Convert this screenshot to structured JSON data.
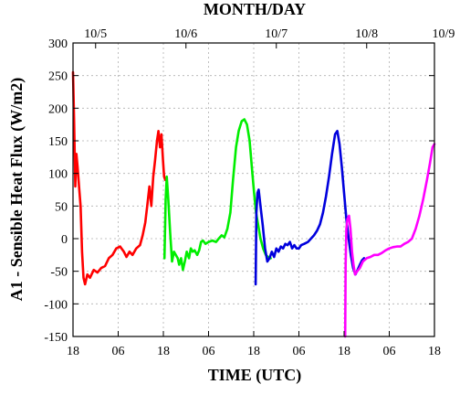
{
  "chart_data": {
    "type": "line",
    "xlabel": "TIME (UTC)",
    "x2label": "MONTH/DAY",
    "ylabel": "A1 - Sensible Heat Flux (W/m2)",
    "xlim": [
      0,
      96
    ],
    "ylim": [
      -150,
      300
    ],
    "xticks": [
      {
        "x": 0,
        "label": "18"
      },
      {
        "x": 12,
        "label": "06"
      },
      {
        "x": 24,
        "label": "18"
      },
      {
        "x": 36,
        "label": "06"
      },
      {
        "x": 48,
        "label": "18"
      },
      {
        "x": 60,
        "label": "06"
      },
      {
        "x": 72,
        "label": "18"
      },
      {
        "x": 84,
        "label": "06"
      },
      {
        "x": 96,
        "label": "18"
      }
    ],
    "x2ticks": [
      {
        "x": 6,
        "label": "10/5"
      },
      {
        "x": 30,
        "label": "10/6"
      },
      {
        "x": 54,
        "label": "10/7"
      },
      {
        "x": 78,
        "label": "10/8"
      },
      {
        "x": 102,
        "label": "10/9"
      }
    ],
    "yticks": [
      -150,
      -100,
      -50,
      0,
      50,
      100,
      150,
      200,
      250,
      300
    ],
    "grid": true,
    "series": [
      {
        "color": "#ff0000",
        "points": [
          [
            0,
            255
          ],
          [
            0.3,
            180
          ],
          [
            0.6,
            80
          ],
          [
            0.9,
            130
          ],
          [
            1.2,
            110
          ],
          [
            1.6,
            80
          ],
          [
            2,
            50
          ],
          [
            2.4,
            -20
          ],
          [
            2.8,
            -60
          ],
          [
            3.2,
            -70
          ],
          [
            3.8,
            -55
          ],
          [
            4.5,
            -60
          ],
          [
            5.5,
            -48
          ],
          [
            6.5,
            -52
          ],
          [
            7.5,
            -45
          ],
          [
            8.5,
            -42
          ],
          [
            9.5,
            -30
          ],
          [
            10.5,
            -25
          ],
          [
            11.5,
            -15
          ],
          [
            12.5,
            -12
          ],
          [
            13.5,
            -20
          ],
          [
            14.2,
            -28
          ],
          [
            15,
            -20
          ],
          [
            15.8,
            -25
          ],
          [
            16.8,
            -15
          ],
          [
            17.8,
            -10
          ],
          [
            18.5,
            5
          ],
          [
            19.2,
            25
          ],
          [
            19.8,
            55
          ],
          [
            20.3,
            80
          ],
          [
            20.8,
            50
          ],
          [
            21.3,
            95
          ],
          [
            21.8,
            120
          ],
          [
            22.3,
            150
          ],
          [
            22.7,
            165
          ],
          [
            23.1,
            140
          ],
          [
            23.5,
            160
          ],
          [
            23.9,
            120
          ],
          [
            24.2,
            95
          ],
          [
            24.5,
            90
          ]
        ]
      },
      {
        "color": "#00ee00",
        "points": [
          [
            24.3,
            -30
          ],
          [
            24.6,
            60
          ],
          [
            24.9,
            95
          ],
          [
            25.3,
            60
          ],
          [
            25.8,
            10
          ],
          [
            26.3,
            -35
          ],
          [
            26.8,
            -20
          ],
          [
            27.3,
            -25
          ],
          [
            27.8,
            -30
          ],
          [
            28.2,
            -40
          ],
          [
            28.7,
            -30
          ],
          [
            29.2,
            -48
          ],
          [
            29.7,
            -35
          ],
          [
            30.2,
            -20
          ],
          [
            30.8,
            -30
          ],
          [
            31.3,
            -15
          ],
          [
            31.8,
            -20
          ],
          [
            32.3,
            -18
          ],
          [
            33,
            -25
          ],
          [
            33.5,
            -18
          ],
          [
            34,
            -5
          ],
          [
            34.5,
            -3
          ],
          [
            35.2,
            -8
          ],
          [
            36,
            -5
          ],
          [
            37,
            -3
          ],
          [
            38,
            -5
          ],
          [
            38.7,
            0
          ],
          [
            39.5,
            5
          ],
          [
            40.2,
            2
          ],
          [
            41,
            15
          ],
          [
            41.8,
            40
          ],
          [
            42.5,
            90
          ],
          [
            43.3,
            140
          ],
          [
            44,
            165
          ],
          [
            44.8,
            180
          ],
          [
            45.5,
            183
          ],
          [
            46.2,
            175
          ],
          [
            46.9,
            150
          ],
          [
            47.5,
            110
          ],
          [
            48.1,
            70
          ],
          [
            48.6,
            40
          ],
          [
            49.2,
            20
          ],
          [
            49.8,
            0
          ],
          [
            50.5,
            -15
          ],
          [
            51.2,
            -25
          ],
          [
            51.8,
            -28
          ],
          [
            52.5,
            -30
          ]
        ]
      },
      {
        "color": "#0000dd",
        "points": [
          [
            48.5,
            -70
          ],
          [
            48.7,
            40
          ],
          [
            49,
            70
          ],
          [
            49.3,
            75
          ],
          [
            49.8,
            50
          ],
          [
            50.4,
            20
          ],
          [
            51,
            -15
          ],
          [
            51.6,
            -35
          ],
          [
            52.2,
            -30
          ],
          [
            52.8,
            -20
          ],
          [
            53.4,
            -28
          ],
          [
            54,
            -15
          ],
          [
            54.6,
            -20
          ],
          [
            55.2,
            -12
          ],
          [
            55.8,
            -15
          ],
          [
            56.4,
            -8
          ],
          [
            57,
            -10
          ],
          [
            57.6,
            -5
          ],
          [
            58.2,
            -15
          ],
          [
            58.8,
            -10
          ],
          [
            59.4,
            -15
          ],
          [
            60,
            -15
          ],
          [
            60.6,
            -10
          ],
          [
            61.4,
            -8
          ],
          [
            62.4,
            -5
          ],
          [
            63.2,
            0
          ],
          [
            64,
            5
          ],
          [
            64.8,
            12
          ],
          [
            65.6,
            22
          ],
          [
            66.4,
            40
          ],
          [
            67.2,
            65
          ],
          [
            68,
            95
          ],
          [
            68.8,
            130
          ],
          [
            69.6,
            160
          ],
          [
            70.2,
            165
          ],
          [
            70.8,
            145
          ],
          [
            71.4,
            110
          ],
          [
            72,
            70
          ],
          [
            72.6,
            30
          ],
          [
            73.2,
            0
          ],
          [
            73.8,
            -25
          ],
          [
            74.4,
            -45
          ],
          [
            75,
            -55
          ],
          [
            75.6,
            -48
          ],
          [
            76.2,
            -40
          ],
          [
            76.8,
            -33
          ],
          [
            77.3,
            -30
          ]
        ]
      },
      {
        "color": "#ff00ff",
        "points": [
          [
            72.3,
            -150
          ],
          [
            72.4,
            -40
          ],
          [
            72.6,
            15
          ],
          [
            72.9,
            30
          ],
          [
            73.3,
            35
          ],
          [
            73.7,
            15
          ],
          [
            74.1,
            -20
          ],
          [
            74.5,
            -40
          ],
          [
            74.9,
            -55
          ],
          [
            75.5,
            -50
          ],
          [
            76.2,
            -45
          ],
          [
            77,
            -35
          ],
          [
            78,
            -30
          ],
          [
            79,
            -28
          ],
          [
            80,
            -25
          ],
          [
            81,
            -25
          ],
          [
            82,
            -22
          ],
          [
            83,
            -18
          ],
          [
            84,
            -15
          ],
          [
            85,
            -13
          ],
          [
            86,
            -12
          ],
          [
            87,
            -12
          ],
          [
            88,
            -8
          ],
          [
            89,
            -5
          ],
          [
            90,
            0
          ],
          [
            91,
            15
          ],
          [
            92,
            35
          ],
          [
            93,
            60
          ],
          [
            94,
            90
          ],
          [
            94.8,
            115
          ],
          [
            95.5,
            140
          ],
          [
            96,
            145
          ]
        ]
      }
    ]
  }
}
